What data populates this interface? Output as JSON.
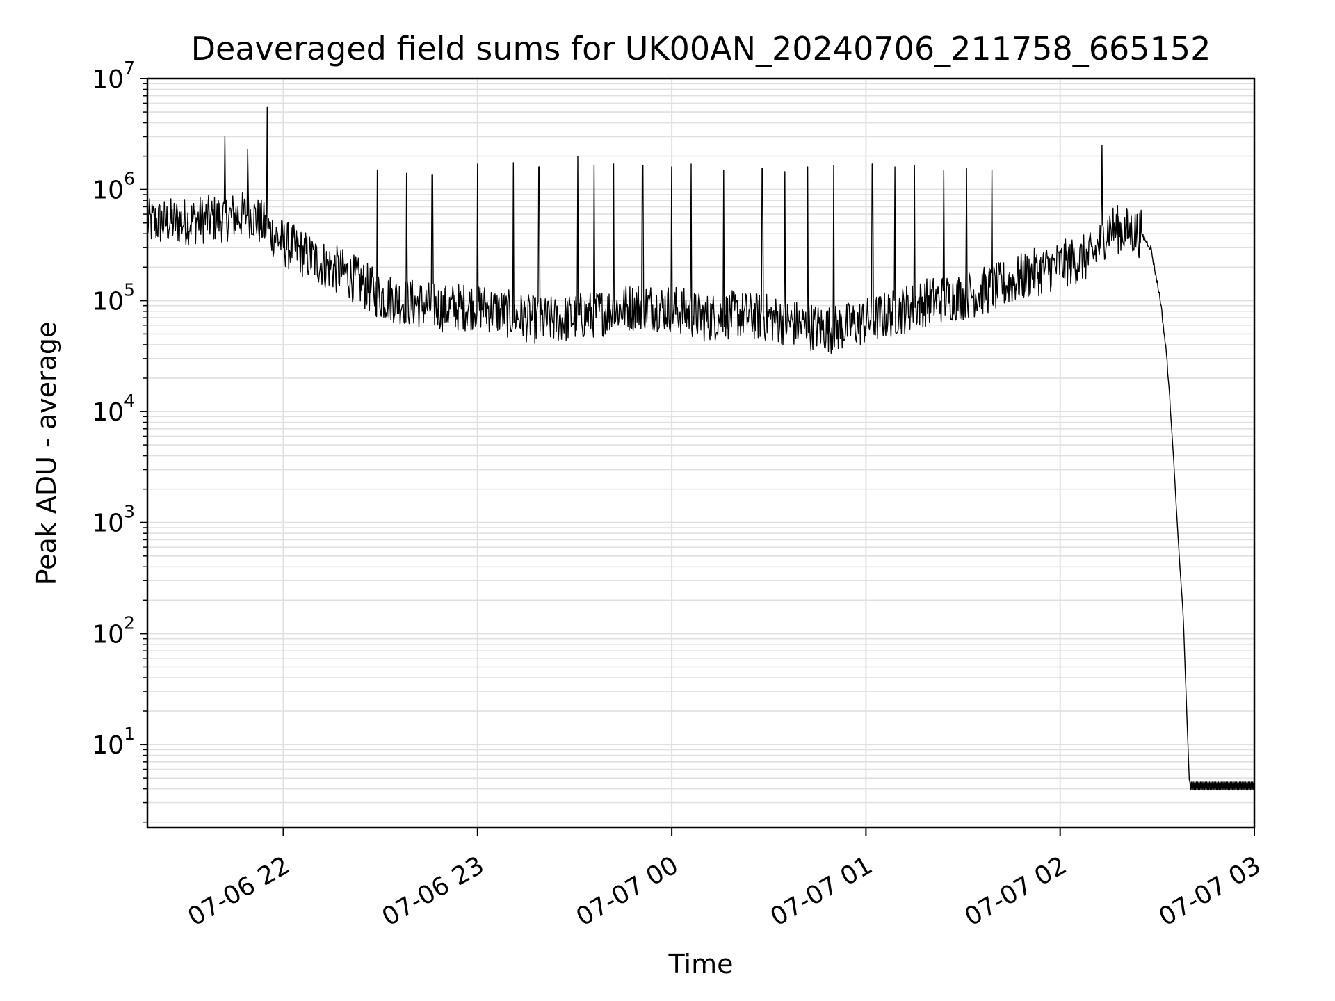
{
  "chart_data": {
    "type": "line",
    "title": "Deaveraged field sums for UK00AN_20240706_211758_665152",
    "xlabel": "Time",
    "ylabel": "Peak ADU - average",
    "y_scale": "log",
    "ylim": [
      1.8,
      10000000
    ],
    "xlim": [
      "2024-07-06 21:18",
      "2024-07-07 03:00"
    ],
    "x_ticks": [
      {
        "value": "2024-07-06 22:00",
        "label": "07-06 22"
      },
      {
        "value": "2024-07-06 23:00",
        "label": "07-06 23"
      },
      {
        "value": "2024-07-07 00:00",
        "label": "07-07 00"
      },
      {
        "value": "2024-07-07 01:00",
        "label": "07-07 01"
      },
      {
        "value": "2024-07-07 02:00",
        "label": "07-07 02"
      },
      {
        "value": "2024-07-07 03:00",
        "label": "07-07 03"
      }
    ],
    "y_ticks": [
      {
        "value": 10,
        "base": "10",
        "exp": "1"
      },
      {
        "value": 100,
        "base": "10",
        "exp": "2"
      },
      {
        "value": 1000,
        "base": "10",
        "exp": "3"
      },
      {
        "value": 10000,
        "base": "10",
        "exp": "4"
      },
      {
        "value": 100000,
        "base": "10",
        "exp": "5"
      },
      {
        "value": 1000000,
        "base": "10",
        "exp": "6"
      },
      {
        "value": 10000000,
        "base": "10",
        "exp": "7"
      }
    ],
    "grid": true,
    "line_color": "#000000",
    "grid_color": "#e0e0e0",
    "series": [
      {
        "x": [
          "2024-07-06 21:18",
          "2024-07-06 21:30",
          "2024-07-06 21:40",
          "2024-07-06 21:50",
          "2024-07-06 22:00",
          "2024-07-06 22:10",
          "2024-07-06 22:20",
          "2024-07-06 22:30",
          "2024-07-06 22:40",
          "2024-07-06 22:50",
          "2024-07-06 23:00",
          "2024-07-06 23:10",
          "2024-07-06 23:20",
          "2024-07-06 23:30",
          "2024-07-06 23:40",
          "2024-07-06 23:50",
          "2024-07-07 00:00",
          "2024-07-07 00:10",
          "2024-07-07 00:20",
          "2024-07-07 00:30",
          "2024-07-07 00:40",
          "2024-07-07 00:50",
          "2024-07-07 01:00",
          "2024-07-07 01:10",
          "2024-07-07 01:20",
          "2024-07-07 01:30",
          "2024-07-07 01:40",
          "2024-07-07 01:50",
          "2024-07-07 02:00",
          "2024-07-07 02:10",
          "2024-07-07 02:15",
          "2024-07-07 02:20",
          "2024-07-07 02:25",
          "2024-07-07 02:28",
          "2024-07-07 02:31",
          "2024-07-07 02:33",
          "2024-07-07 02:35",
          "2024-07-07 02:36",
          "2024-07-07 02:37",
          "2024-07-07 02:38",
          "2024-07-07 02:40",
          "2024-07-07 02:45",
          "2024-07-07 02:50",
          "2024-07-07 03:00"
        ],
        "y": [
          500000,
          520000,
          550000,
          600000,
          330000,
          230000,
          170000,
          110000,
          95000,
          85000,
          90000,
          75000,
          65000,
          70000,
          80000,
          90000,
          85000,
          70000,
          75000,
          70000,
          60000,
          55000,
          65000,
          80000,
          100000,
          110000,
          130000,
          170000,
          210000,
          250000,
          450000,
          430000,
          400000,
          300000,
          100000,
          30000,
          4000,
          1200,
          400,
          150,
          3.9,
          3.9,
          3.9,
          3.9
        ]
      }
    ],
    "spikes": [
      {
        "x": "2024-07-06 21:42",
        "y": 3000000
      },
      {
        "x": "2024-07-06 21:49",
        "y": 2300000
      },
      {
        "x": "2024-07-06 21:55",
        "y": 5500000
      },
      {
        "x": "2024-07-06 22:29",
        "y": 1500000
      },
      {
        "x": "2024-07-06 22:38",
        "y": 1400000
      },
      {
        "x": "2024-07-06 22:46",
        "y": 1350000
      },
      {
        "x": "2024-07-06 23:00",
        "y": 1700000
      },
      {
        "x": "2024-07-06 23:11",
        "y": 1750000
      },
      {
        "x": "2024-07-06 23:19",
        "y": 1600000
      },
      {
        "x": "2024-07-06 23:31",
        "y": 2000000
      },
      {
        "x": "2024-07-06 23:36",
        "y": 1650000
      },
      {
        "x": "2024-07-06 23:42",
        "y": 1700000
      },
      {
        "x": "2024-07-06 23:51",
        "y": 1650000
      },
      {
        "x": "2024-07-07 00:00",
        "y": 1600000
      },
      {
        "x": "2024-07-07 00:06",
        "y": 1700000
      },
      {
        "x": "2024-07-07 00:16",
        "y": 1500000
      },
      {
        "x": "2024-07-07 00:28",
        "y": 1550000
      },
      {
        "x": "2024-07-07 00:35",
        "y": 1450000
      },
      {
        "x": "2024-07-07 00:42",
        "y": 1600000
      },
      {
        "x": "2024-07-07 00:50",
        "y": 1650000
      },
      {
        "x": "2024-07-07 01:02",
        "y": 1700000
      },
      {
        "x": "2024-07-07 01:09",
        "y": 1600000
      },
      {
        "x": "2024-07-07 01:15",
        "y": 1650000
      },
      {
        "x": "2024-07-07 01:24",
        "y": 1500000
      },
      {
        "x": "2024-07-07 01:31",
        "y": 1550000
      },
      {
        "x": "2024-07-07 01:39",
        "y": 1500000
      },
      {
        "x": "2024-07-07 02:13",
        "y": 2500000
      }
    ]
  }
}
